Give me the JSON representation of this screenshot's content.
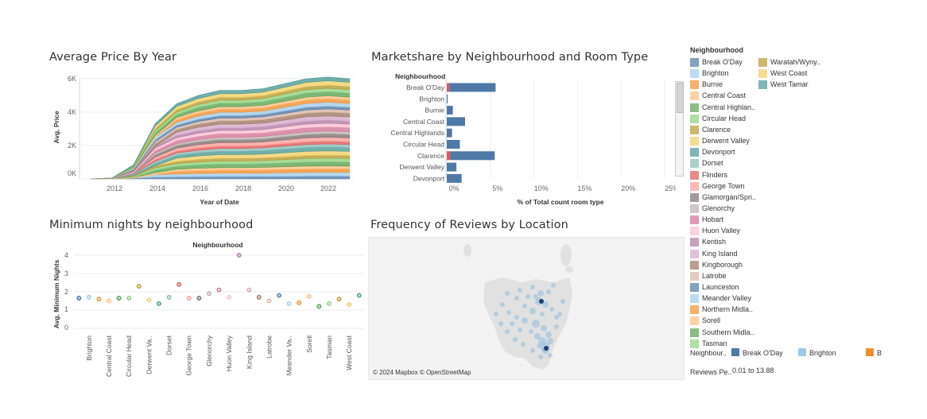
{
  "titles": {
    "price": "Average Price By Year",
    "share": "Marketshare by Neighbourhood and Room Type",
    "minnights": "Minimum nights by neighbourhood",
    "reviews": "Frequency of Reviews by Location"
  },
  "charts": {
    "price": {
      "ylabel": "Avg. Price",
      "xlabel": "Year of Date",
      "yticks": [
        "6K",
        "4K",
        "2K",
        "0K"
      ],
      "xticks": [
        "2012",
        "2014",
        "2016",
        "2018",
        "2020",
        "2022"
      ]
    },
    "share": {
      "header": "Neighbourhood",
      "xlabel": "% of Total count room type",
      "xticks": [
        "0%",
        "5%",
        "10%",
        "15%",
        "20%",
        "25%"
      ]
    },
    "minnights": {
      "header": "Neighbourhood",
      "ylabel": "Avg. Minimum Nights",
      "yticks": [
        "4",
        "3",
        "2",
        "1",
        "0"
      ]
    }
  },
  "chart_data": [
    {
      "type": "area",
      "title": "Average Price By Year",
      "xlabel": "Year of Date",
      "ylabel": "Avg. Price",
      "stacked": true,
      "x": [
        2011,
        2012,
        2013,
        2014,
        2015,
        2016,
        2017,
        2018,
        2019,
        2020,
        2021,
        2022,
        2023
      ],
      "totals": [
        0,
        400,
        1600,
        3900,
        4500,
        5000,
        5300,
        5300,
        5400,
        5700,
        6000,
        6100,
        6000
      ],
      "ylim": [
        0,
        6000
      ],
      "xlim": [
        2010.5,
        2023.2
      ]
    },
    {
      "type": "bar",
      "title": "Marketshare by Neighbourhood and Room Type",
      "xlabel": "% of Total count room type",
      "categories": [
        "Break O'Day",
        "Brighton",
        "Burnie",
        "Central Coast",
        "Central Highlands",
        "Circular Head",
        "Clarence",
        "Derwent Valley",
        "Devonport"
      ],
      "series": [
        {
          "values": [
            0.3,
            0.0,
            0.0,
            0.0,
            0.0,
            0.0,
            0.4,
            0.0,
            0.0
          ]
        },
        {
          "values": [
            5.3,
            0.1,
            0.7,
            2.1,
            0.6,
            1.5,
            5.1,
            1.1,
            1.7
          ]
        }
      ],
      "xlim": [
        0,
        26
      ]
    },
    {
      "type": "scatter",
      "title": "Minimum nights by neighbourhood",
      "ylabel": "Avg. Minimum Nights",
      "categories": [
        "Break O'Day",
        "Brighton",
        "Burnie",
        "Central Coast",
        "Central Highlands",
        "Circular Head",
        "Clarence",
        "Derwent Valley",
        "Devonport",
        "Dorset",
        "Flinders",
        "George Town",
        "Glamorgan/Spring Bay",
        "Glenorchy",
        "Hobart",
        "Huon Valley",
        "Kentish",
        "King Island",
        "Kingborough",
        "Latrobe",
        "Launceston",
        "Meander Valley",
        "Northern Midlands",
        "Sorell",
        "Southern Midlands",
        "Tasman",
        "Waratah/Wynyard",
        "West Coast",
        "West Tamar"
      ],
      "tick_labels": [
        "Brighton",
        "Central Coast",
        "Circular Head",
        "Derwent Va..",
        "Dorset",
        "George Town",
        "Glenorchy",
        "Huon Valley",
        "King Island",
        "Latrobe",
        "Meander Va..",
        "Sorell",
        "Tasman",
        "West Coast"
      ],
      "values": [
        1.65,
        1.7,
        1.6,
        1.5,
        1.65,
        1.65,
        2.3,
        1.55,
        1.35,
        1.7,
        2.4,
        1.65,
        1.65,
        1.9,
        2.1,
        1.7,
        4.0,
        2.1,
        1.7,
        1.5,
        1.8,
        1.35,
        1.4,
        1.75,
        1.2,
        1.35,
        1.6,
        1.3,
        1.8
      ],
      "ylim": [
        0,
        4.3
      ]
    }
  ],
  "neighbourhoods": [
    {
      "name": "Break O'Day",
      "color": "#4e79a7"
    },
    {
      "name": "Brighton",
      "color": "#a0cbe8"
    },
    {
      "name": "Burnie",
      "color": "#f28e2b"
    },
    {
      "name": "Central Coast",
      "color": "#ffbe7d"
    },
    {
      "name": "Central Highlan..",
      "color": "#59a14f"
    },
    {
      "name": "Circular Head",
      "color": "#8cd17d"
    },
    {
      "name": "Clarence",
      "color": "#b6992d"
    },
    {
      "name": "Derwent Valley",
      "color": "#f1ce63"
    },
    {
      "name": "Devonport",
      "color": "#499894"
    },
    {
      "name": "Dorset",
      "color": "#86bcb6"
    },
    {
      "name": "Flinders",
      "color": "#e15759"
    },
    {
      "name": "George Town",
      "color": "#ff9d9a"
    },
    {
      "name": "Glamorgan/Spri..",
      "color": "#79706e"
    },
    {
      "name": "Glenorchy",
      "color": "#bab0ac"
    },
    {
      "name": "Hobart",
      "color": "#d37295"
    },
    {
      "name": "Huon Valley",
      "color": "#fabfd2"
    },
    {
      "name": "Kentish",
      "color": "#b07aa1"
    },
    {
      "name": "King Island",
      "color": "#d4a6c8"
    },
    {
      "name": "Kingborough",
      "color": "#9d7660"
    },
    {
      "name": "Latrobe",
      "color": "#d7b5a6"
    },
    {
      "name": "Launceston",
      "color": "#4e79a7"
    },
    {
      "name": "Meander Valley",
      "color": "#a0cbe8"
    },
    {
      "name": "Northern Midla..",
      "color": "#f28e2b"
    },
    {
      "name": "Sorell",
      "color": "#ffbe7d"
    },
    {
      "name": "Southern Midla..",
      "color": "#59a14f"
    },
    {
      "name": "Tasman",
      "color": "#8cd17d"
    },
    {
      "name": "Waratah/Wyny..",
      "color": "#b6992d"
    },
    {
      "name": "West Coast",
      "color": "#f1ce63"
    },
    {
      "name": "West Tamar",
      "color": "#499894"
    }
  ],
  "legend": {
    "title": "Neighbourhood",
    "color_legend_label": "Neighbour..",
    "color_items": [
      {
        "name": "Break O'Day",
        "color": "#4e79a7"
      },
      {
        "name": "Brighton",
        "color": "#a0cbe8"
      },
      {
        "name": "B",
        "color": "#f28e2b"
      }
    ],
    "size_legend_label": "Reviews Pe..",
    "size_range": "0.01 to 13.88"
  },
  "map": {
    "credit": "© 2024 Mapbox © OpenStreetMap"
  }
}
